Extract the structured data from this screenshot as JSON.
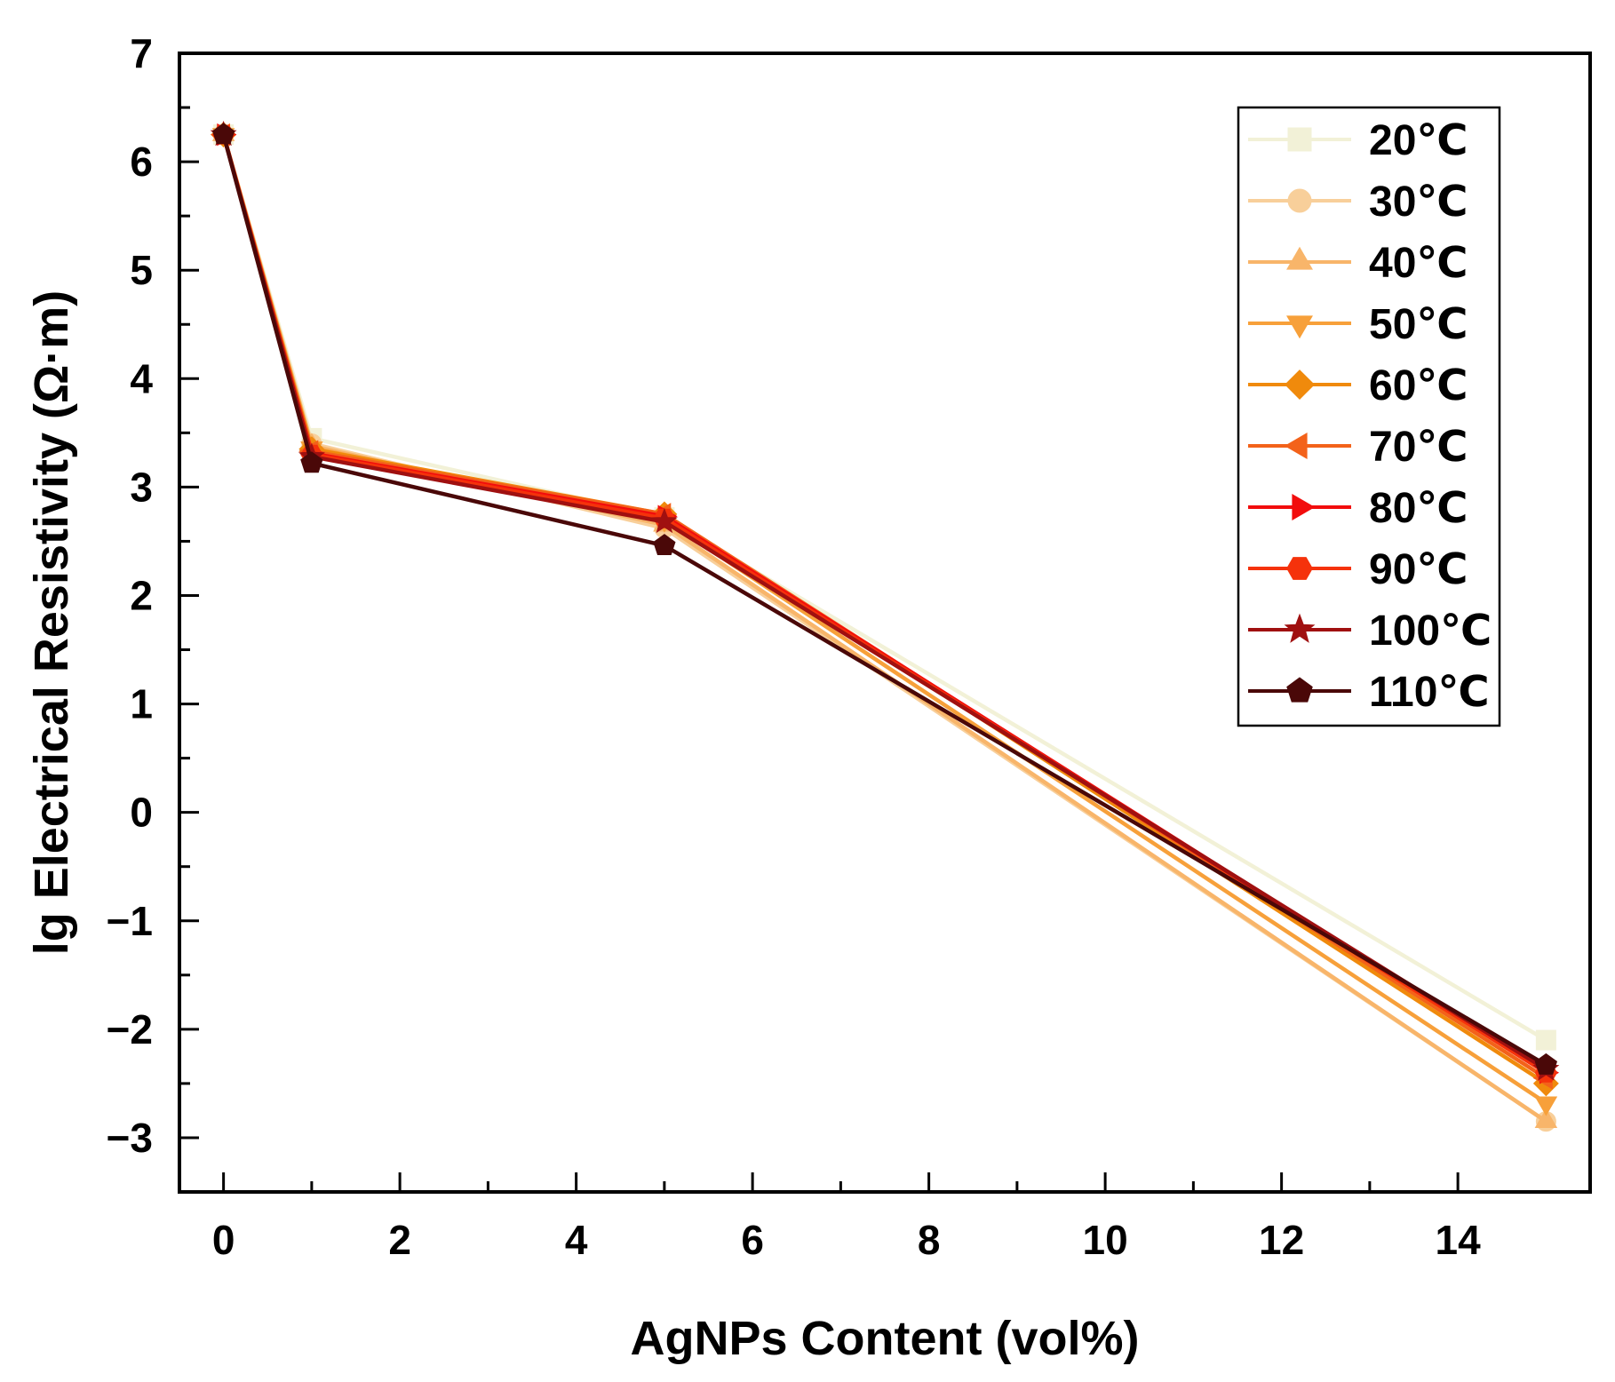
{
  "chart_data": {
    "type": "line",
    "xlabel": "AgNPs Content (vol%)",
    "ylabel": "lg Electrical Resistivity (Ω·m)",
    "xlim": [
      -0.5,
      15.5
    ],
    "ylim": [
      -3.5,
      7
    ],
    "xticks": [
      0,
      2,
      4,
      6,
      8,
      10,
      12,
      14
    ],
    "xtick_labels": [
      "0",
      "2",
      "4",
      "6",
      "8",
      "10",
      "12",
      "14"
    ],
    "yticks": [
      -3,
      -2,
      -1,
      0,
      1,
      2,
      3,
      4,
      5,
      6,
      7
    ],
    "ytick_labels": [
      "−3",
      "−2",
      "−1",
      "0",
      "1",
      "2",
      "3",
      "4",
      "5",
      "6",
      "7"
    ],
    "grid": false,
    "legend_position": "top-right",
    "x": [
      0,
      1,
      5,
      15
    ],
    "series": [
      {
        "name": "20℃",
        "color": "#f2f1d7",
        "marker": "square",
        "values": [
          6.25,
          3.45,
          2.72,
          -2.1
        ]
      },
      {
        "name": "30℃",
        "color": "#f8cf9a",
        "marker": "circle",
        "values": [
          6.25,
          3.4,
          2.62,
          -2.85
        ]
      },
      {
        "name": "40℃",
        "color": "#f8b56a",
        "marker": "triangle-up",
        "values": [
          6.25,
          3.38,
          2.65,
          -2.85
        ]
      },
      {
        "name": "50℃",
        "color": "#f7a03a",
        "marker": "triangle-down",
        "values": [
          6.25,
          3.36,
          2.7,
          -2.68
        ]
      },
      {
        "name": "60℃",
        "color": "#f08a0c",
        "marker": "diamond",
        "values": [
          6.25,
          3.35,
          2.75,
          -2.5
        ]
      },
      {
        "name": "70℃",
        "color": "#f3621a",
        "marker": "triangle-left",
        "values": [
          6.25,
          3.33,
          2.75,
          -2.45
        ]
      },
      {
        "name": "80℃",
        "color": "#f20d0d",
        "marker": "triangle-right",
        "values": [
          6.25,
          3.31,
          2.73,
          -2.4
        ]
      },
      {
        "name": "90℃",
        "color": "#f5320b",
        "marker": "hexagon",
        "values": [
          6.25,
          3.3,
          2.71,
          -2.4
        ]
      },
      {
        "name": "100℃",
        "color": "#a01010",
        "marker": "star",
        "values": [
          6.25,
          3.28,
          2.68,
          -2.37
        ]
      },
      {
        "name": "110℃",
        "color": "#4a0808",
        "marker": "pentagon",
        "values": [
          6.25,
          3.22,
          2.46,
          -2.33
        ]
      }
    ]
  }
}
